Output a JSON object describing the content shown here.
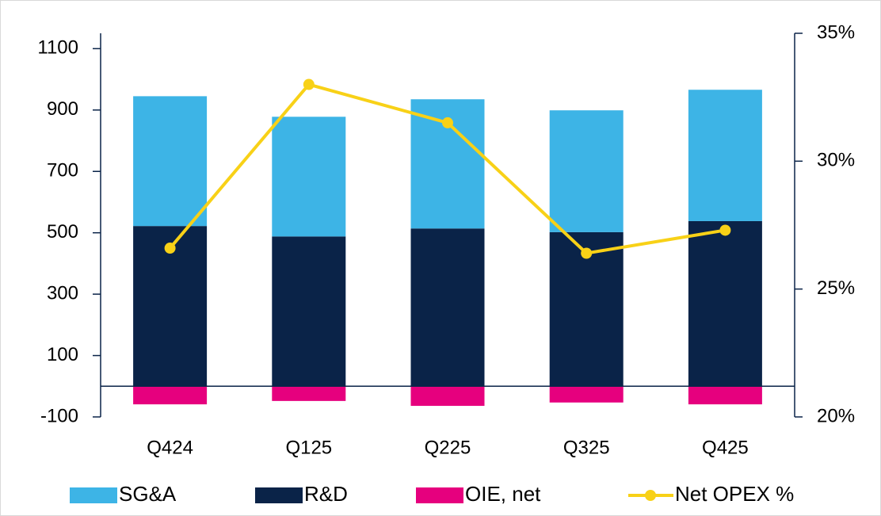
{
  "chart_data": {
    "type": "bar",
    "categories": [
      "Q424",
      "Q125",
      "Q225",
      "Q325",
      "Q425"
    ],
    "series": [
      {
        "name": "SG&A",
        "color": "#3db4e6",
        "values": [
          423,
          390,
          421,
          397,
          428
        ]
      },
      {
        "name": "R&D",
        "color": "#0a2348",
        "values": [
          522,
          488,
          514,
          502,
          538
        ]
      },
      {
        "name": "OIE, net",
        "color": "#e6007e",
        "values": [
          -59,
          -48,
          -64,
          -53,
          -59
        ]
      },
      {
        "name": "Net OPEX %",
        "color": "#f8d117",
        "type": "line",
        "axis": "y2",
        "values": [
          26.6,
          33.0,
          31.5,
          26.4,
          27.3
        ]
      }
    ],
    "stacking": [
      [
        "R&D",
        "SG&A"
      ],
      [
        "OIE, net"
      ]
    ],
    "ylim": [
      -100,
      1150
    ],
    "yticks": [
      -100,
      100,
      300,
      500,
      700,
      900,
      1100
    ],
    "y2lim": [
      20,
      35
    ],
    "y2ticks": [
      {
        "value": 20,
        "label": "20%"
      },
      {
        "value": 25,
        "label": "25%"
      },
      {
        "value": 30,
        "label": "30%"
      },
      {
        "value": 35,
        "label": "35%"
      }
    ],
    "legend": "bottom",
    "grid": false
  }
}
